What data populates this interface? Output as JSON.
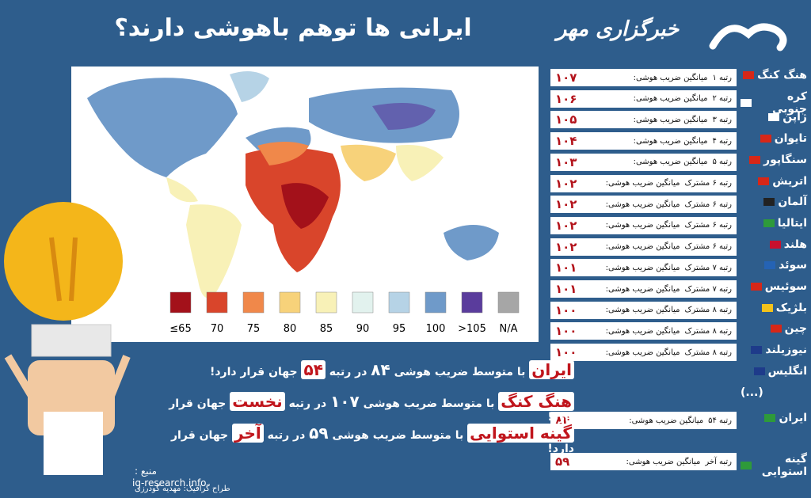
{
  "header": {
    "title": "ایرانی ها توهم باهوشی دارند؟",
    "brand": "خبرگزاری مهر"
  },
  "legend": {
    "items": [
      {
        "label": "≤65",
        "color": "#a3111a"
      },
      {
        "label": "70",
        "color": "#d9452b"
      },
      {
        "label": "75",
        "color": "#f0884a"
      },
      {
        "label": "80",
        "color": "#f7d27a"
      },
      {
        "label": "85",
        "color": "#f8f1b7"
      },
      {
        "label": "90",
        "color": "#e2f2ee"
      },
      {
        "label": "95",
        "color": "#b6d3e6"
      },
      {
        "label": "100",
        "color": "#6f9ac9"
      },
      {
        "label": ">105",
        "color": "#5a3c9c"
      },
      {
        "label": "N/A",
        "color": "#a6a6a6"
      }
    ]
  },
  "ranking": {
    "rows": [
      {
        "country": "هنگ کنگ",
        "rank": "رتبه ۱",
        "avg_label": "میانگین ضریب هوشی:",
        "score": "۱۰۷"
      },
      {
        "country": "کره جنوبی",
        "rank": "رتبه ۲",
        "avg_label": "میانگین ضریب هوشی:",
        "score": "۱۰۶"
      },
      {
        "country": "ژاپن",
        "rank": "رتبه ۳",
        "avg_label": "میانگین ضریب هوشی:",
        "score": "۱۰۵"
      },
      {
        "country": "تایوان",
        "rank": "رتبه ۴",
        "avg_label": "میانگین ضریب هوشی:",
        "score": "۱۰۴"
      },
      {
        "country": "سنگاپور",
        "rank": "رتبه ۵",
        "avg_label": "میانگین ضریب هوشی:",
        "score": "۱۰۳"
      },
      {
        "country": "اتریش",
        "rank": "رتبه ۶ مشترک",
        "avg_label": "میانگین ضریب هوشی:",
        "score": "۱۰۲"
      },
      {
        "country": "آلمان",
        "rank": "رتبه ۶ مشترک",
        "avg_label": "میانگین ضریب هوشی:",
        "score": "۱۰۲"
      },
      {
        "country": "ایتالیا",
        "rank": "رتبه ۶ مشترک",
        "avg_label": "میانگین ضریب هوشی:",
        "score": "۱۰۲"
      },
      {
        "country": "هلند",
        "rank": "رتبه ۶ مشترک",
        "avg_label": "میانگین ضریب هوشی:",
        "score": "۱۰۲"
      },
      {
        "country": "سوئد",
        "rank": "رتبه ۷ مشترک",
        "avg_label": "میانگین ضریب هوشی:",
        "score": "۱۰۱"
      },
      {
        "country": "سوئیس",
        "rank": "رتبه ۷ مشترک",
        "avg_label": "میانگین ضریب هوشی:",
        "score": "۱۰۱"
      },
      {
        "country": "بلژیک",
        "rank": "رتبه ۸ مشترک",
        "avg_label": "میانگین ضریب هوشی:",
        "score": "۱۰۰"
      },
      {
        "country": "چین",
        "rank": "رتبه ۸ مشترک",
        "avg_label": "میانگین ضریب هوشی:",
        "score": "۱۰۰"
      },
      {
        "country": "نیوزیلند",
        "rank": "رتبه ۸ مشترک",
        "avg_label": "میانگین ضریب هوشی:",
        "score": "۱۰۰"
      }
    ],
    "extra_country": "انگلیس",
    "ellipsis": "(...)",
    "iran": {
      "country": "ایران",
      "rank": "رتبه ۵۴",
      "avg_label": "میانگین ضریب هوشی:",
      "score": "۸۴"
    },
    "last": {
      "country": "گینه استوایی",
      "rank": "رتبه آخر",
      "avg_label": "میانگین ضریب هوشی:",
      "score": "۵۹"
    }
  },
  "statements": [
    {
      "subject": "ایران",
      "t1": "با متوسط ضریب هوشی",
      "num": "۸۴",
      "t2": "در رتبه",
      "rank": "۵۴",
      "t3": "جهان قرار دارد!"
    },
    {
      "subject": "هنگ کنگ",
      "t1": "با متوسط ضریب هوشی",
      "num": "۱۰۷",
      "t2": "در رتبه",
      "rank": "نخست",
      "t3": "جهان قرار دارد!"
    },
    {
      "subject": "گینه استوایی",
      "t1": "با متوسط ضریب هوشی",
      "num": "۵۹",
      "t2": "در رتبه",
      "rank": "آخر",
      "t3": "جهان قرار دارد!"
    }
  ],
  "footer": {
    "source_label": "منبع :",
    "source": "iq-research.info",
    "designer": "طراح گرافیک: مهدیه گودرزی"
  }
}
